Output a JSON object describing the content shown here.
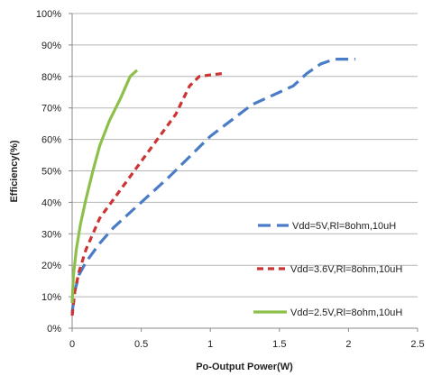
{
  "chart_data": {
    "type": "line",
    "xlabel": "Po-Output Power(W)",
    "ylabel": "Efficiency(%)",
    "xlim": [
      0,
      2.5
    ],
    "ylim": [
      0,
      100
    ],
    "x_ticks": [
      "0",
      "0.5",
      "1",
      "1.5",
      "2",
      "2.5"
    ],
    "y_ticks": [
      "0%",
      "10%",
      "20%",
      "30%",
      "40%",
      "50%",
      "60%",
      "70%",
      "80%",
      "90%",
      "100%"
    ],
    "grid": "horizontal",
    "legend_position": "right",
    "series": [
      {
        "name": "Vdd=5V,Rl=8ohm,10uH",
        "color": "#4a7cc7",
        "dash": "dashed",
        "x": [
          0,
          0.02,
          0.05,
          0.1,
          0.2,
          0.3,
          0.5,
          0.7,
          1.0,
          1.3,
          1.6,
          1.7,
          1.8,
          1.9,
          2.05
        ],
        "y": [
          5,
          12,
          17,
          21,
          27,
          32,
          40,
          48,
          61,
          71,
          77,
          81,
          84,
          85.5,
          85.5
        ]
      },
      {
        "name": "Vdd=3.6V,Rl=8ohm,10uH",
        "color": "#cc3333",
        "dash": "short-dashed",
        "x": [
          0,
          0.02,
          0.05,
          0.1,
          0.2,
          0.3,
          0.45,
          0.6,
          0.75,
          0.85,
          0.92,
          1.0,
          1.1
        ],
        "y": [
          4,
          12,
          18,
          25,
          35,
          41,
          50,
          59,
          68,
          77,
          80,
          80.5,
          81
        ]
      },
      {
        "name": "Vdd=2.5V,Rl=8ohm,10uH",
        "color": "#8dc04a",
        "dash": "solid",
        "x": [
          0,
          0.01,
          0.03,
          0.06,
          0.1,
          0.15,
          0.2,
          0.27,
          0.35,
          0.42,
          0.47
        ],
        "y": [
          8,
          17,
          25,
          33,
          41,
          50,
          58,
          66,
          73,
          80,
          82
        ]
      }
    ]
  }
}
